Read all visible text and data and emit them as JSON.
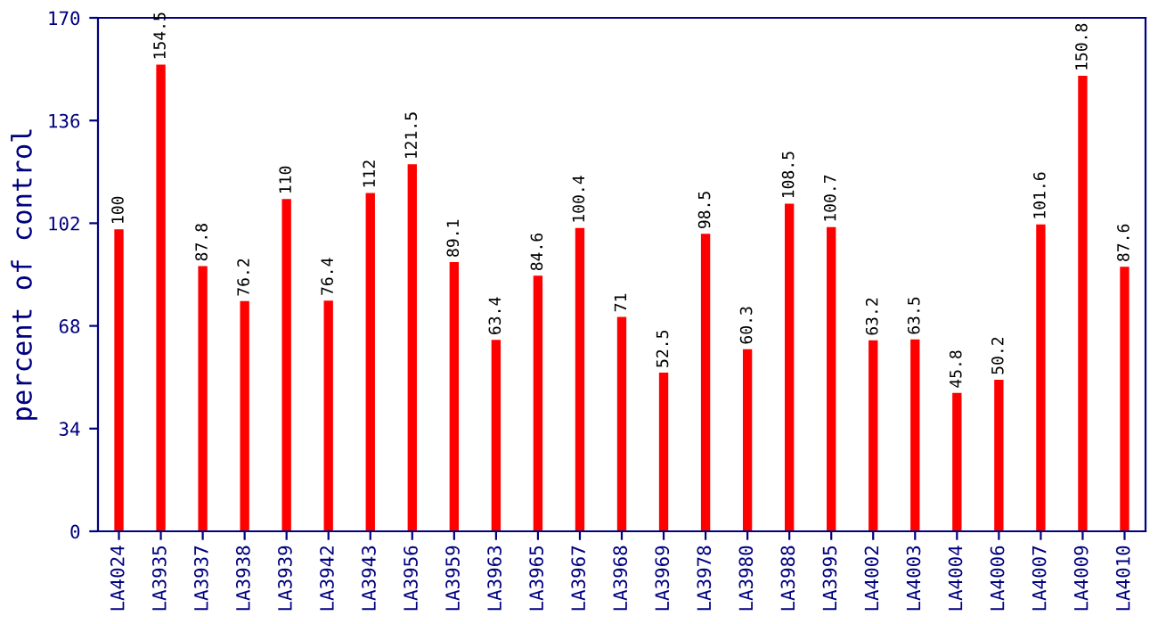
{
  "chart_data": {
    "type": "bar",
    "ylabel": "percent of control",
    "categories": [
      "LA4024",
      "LA3935",
      "LA3937",
      "LA3938",
      "LA3939",
      "LA3942",
      "LA3943",
      "LA3956",
      "LA3959",
      "LA3963",
      "LA3965",
      "LA3967",
      "LA3968",
      "LA3969",
      "LA3978",
      "LA3980",
      "LA3988",
      "LA3995",
      "LA4002",
      "LA4003",
      "LA4004",
      "LA4006",
      "LA4007",
      "LA4009",
      "LA4010"
    ],
    "values": [
      100,
      154.5,
      87.8,
      76.2,
      110,
      76.4,
      112,
      121.5,
      89.1,
      63.4,
      84.6,
      100.4,
      71,
      52.5,
      98.5,
      60.3,
      108.5,
      100.7,
      63.2,
      63.5,
      45.8,
      50.2,
      101.6,
      150.8,
      87.6
    ],
    "color": "#ff0000",
    "ylim": [
      0,
      170
    ],
    "yticks": [
      0,
      34,
      68,
      102,
      136,
      170
    ],
    "data_labels": true,
    "grid": false,
    "legend": false
  }
}
